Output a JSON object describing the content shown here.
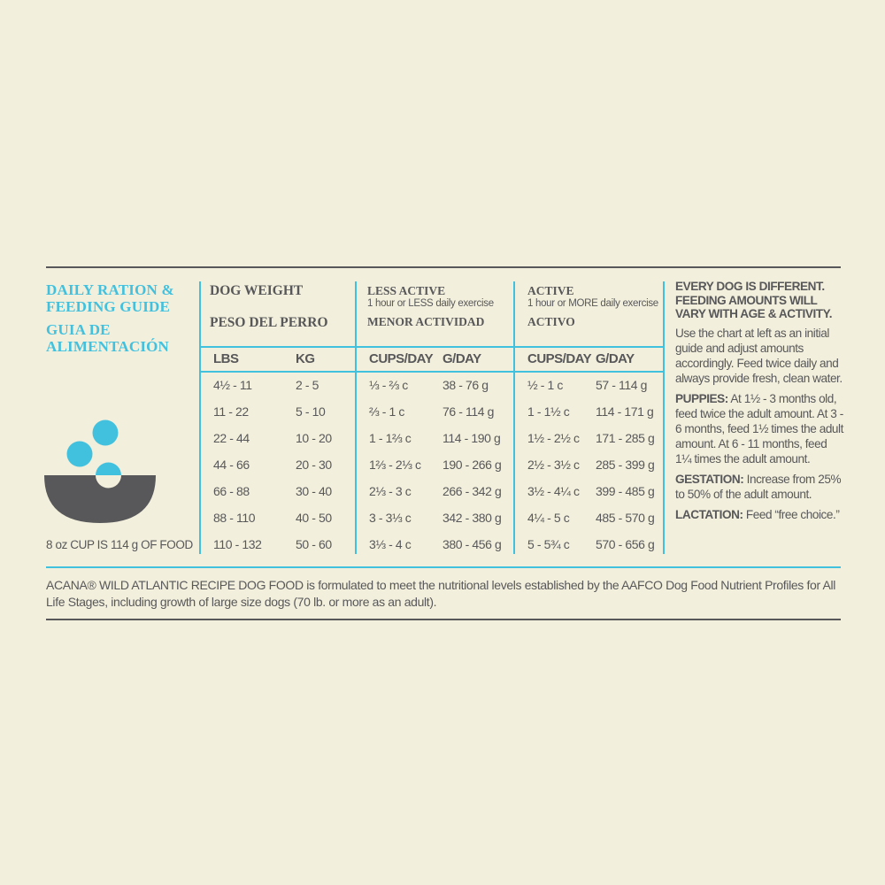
{
  "title": {
    "line1": "DAILY RATION &",
    "line2": "FEEDING GUIDE",
    "line3": "GUIA DE",
    "line4": "ALIMENTACIÓN"
  },
  "colors": {
    "accent": "#42c1df",
    "text": "#58585a",
    "background": "#f2efdc"
  },
  "cup_note": "8 oz CUP IS 114 g OF FOOD",
  "icon": "food-bowl-with-kibble-icon",
  "sections": {
    "weight": {
      "title": "DOG WEIGHT",
      "title_es": "PESO DEL PERRO"
    },
    "less_active": {
      "title": "LESS ACTIVE",
      "subtitle": "1 hour or LESS daily exercise",
      "title_es": "MENOR ACTIVIDAD"
    },
    "active": {
      "title": "ACTIVE",
      "subtitle": "1 hour or MORE daily exercise",
      "title_es": "ACTIVO"
    }
  },
  "columns": [
    "LBS",
    "KG",
    "CUPS/DAY",
    "G/DAY",
    "CUPS/DAY",
    "G/DAY"
  ],
  "rows": [
    [
      "4½ - 11",
      "2 - 5",
      "⅓ - ⅔ c",
      "38 - 76 g",
      "½ - 1 c",
      "57 - 114 g"
    ],
    [
      "11 - 22",
      "5 - 10",
      "⅔ - 1 c",
      "76 - 114 g",
      "1 - 1½ c",
      "114 - 171 g"
    ],
    [
      "22 - 44",
      "10 - 20",
      "1 - 1⅔ c",
      "114 - 190 g",
      "1½ - 2½ c",
      "171 - 285 g"
    ],
    [
      "44 - 66",
      "20 - 30",
      "1⅔ - 2⅓ c",
      "190 - 266 g",
      "2½ - 3½ c",
      "285 - 399 g"
    ],
    [
      "66 - 88",
      "30 - 40",
      "2⅓ - 3 c",
      "266 - 342 g",
      "3½ - 4¼ c",
      "399 - 485 g"
    ],
    [
      "88 - 110",
      "40 - 50",
      "3 - 3⅓ c",
      "342 - 380 g",
      "4¼ - 5 c",
      "485 - 570 g"
    ],
    [
      "110 - 132",
      "50 - 60",
      "3⅓ - 4 c",
      "380 - 456 g",
      "5 - 5¾ c",
      "570 - 656 g"
    ]
  ],
  "side": {
    "heading": "EVERY DOG IS DIFFERENT. FEEDING AMOUNTS WILL VARY WITH AGE & ACTIVITY.",
    "intro": "Use the chart at left as an initial guide and adjust amounts accordingly. Feed twice daily and always provide fresh, clean water.",
    "puppies_label": "PUPPIES:",
    "puppies_text": " At 1½ - 3 months old, feed twice the adult amount. At 3 - 6 months, feed 1½ times the adult amount. At 6 - 11 months, feed 1¼ times the adult amount.",
    "gestation_label": "GESTATION:",
    "gestation_text": " Increase from 25% to 50% of the adult amount.",
    "lactation_label": "LACTATION:",
    "lactation_text": " Feed “free choice.”"
  },
  "footer": "ACANA® WILD ATLANTIC RECIPE DOG FOOD is formulated to meet the nutritional levels established by the AAFCO Dog Food Nutrient Profiles for All Life Stages, including growth of large size dogs (70 lb. or more as an adult)."
}
